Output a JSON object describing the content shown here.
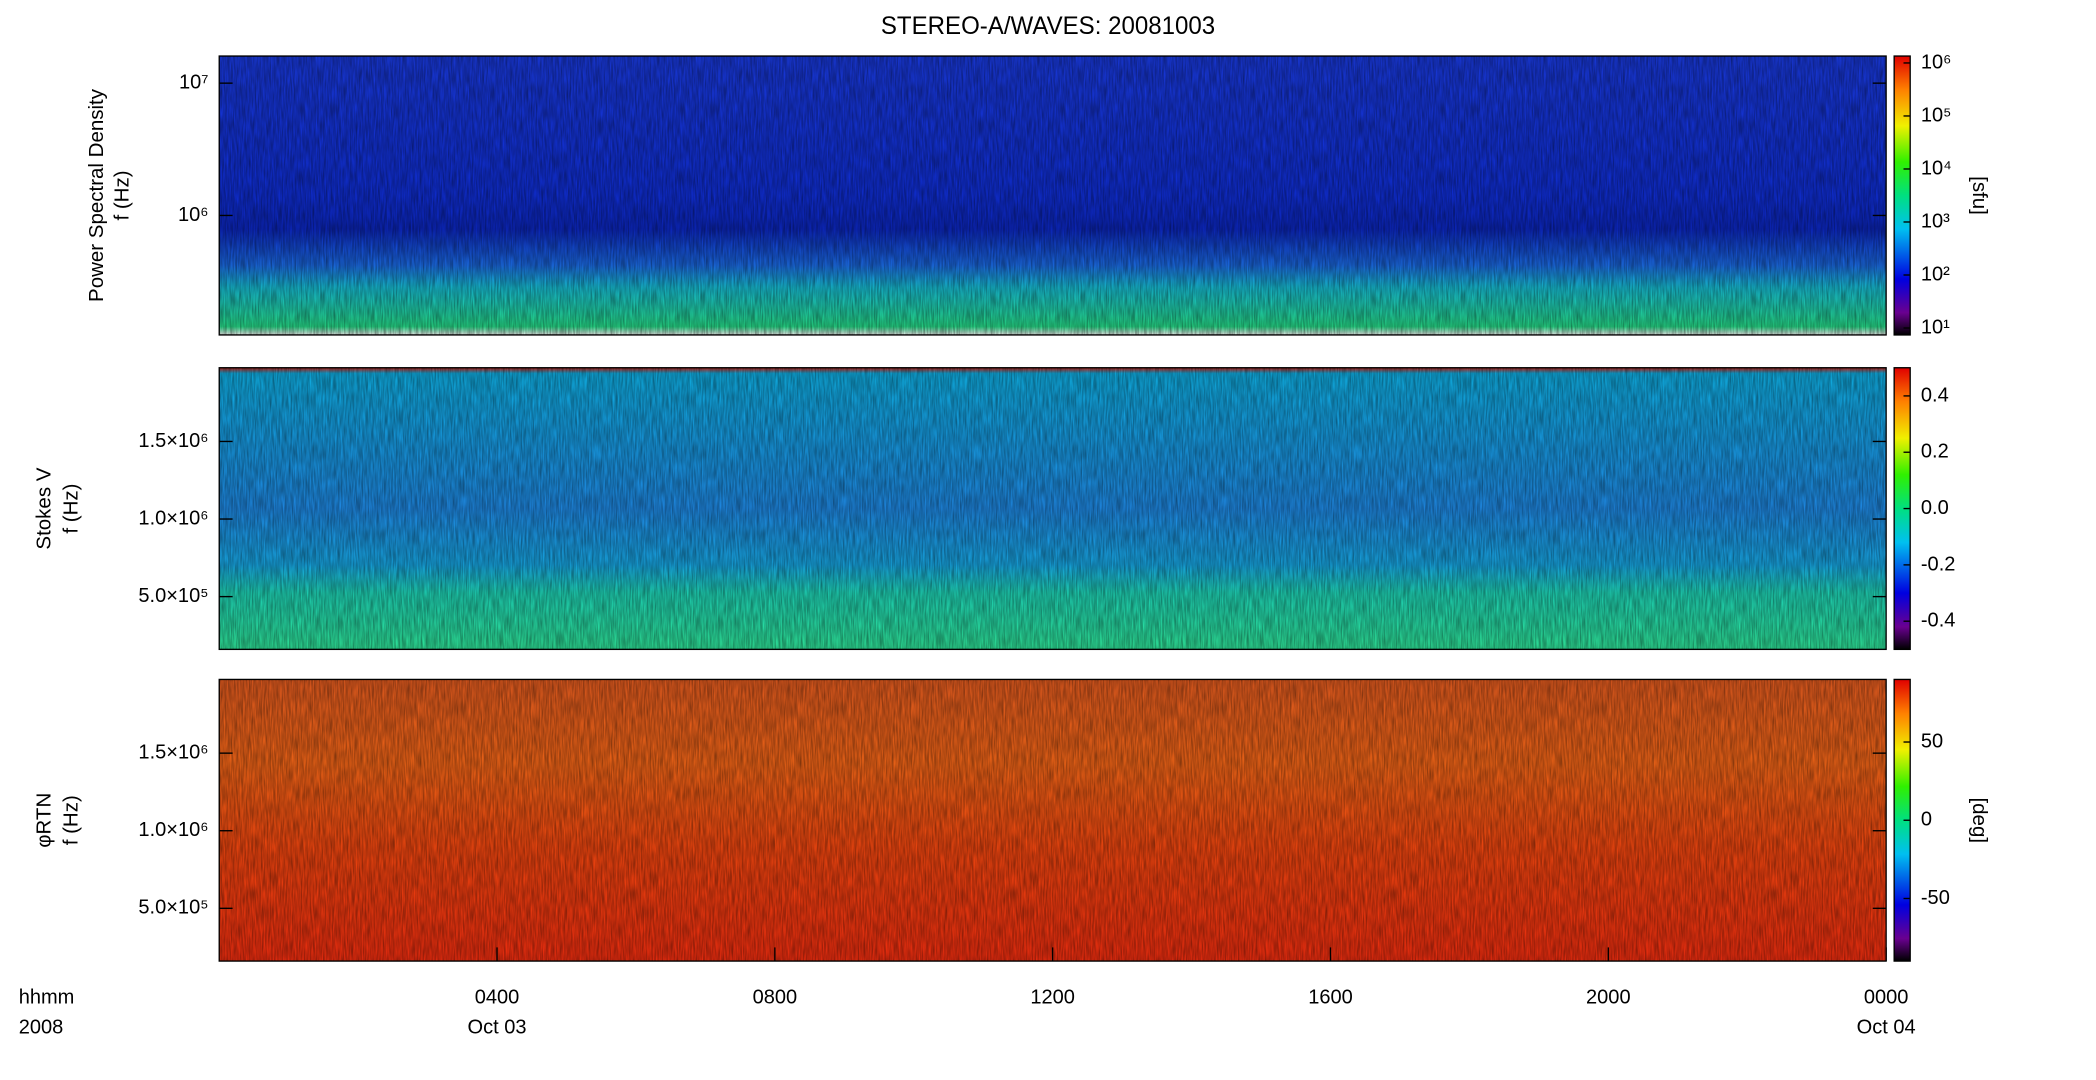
{
  "chart_data": [
    {
      "type": "spectrogram",
      "title": "STEREO-A/WAVES: 20081003",
      "ylabel": [
        "Power Spectral Density",
        "f (Hz)"
      ],
      "yscale": "log",
      "ylim": [
        125000,
        16025000
      ],
      "yticks": [
        {
          "value": 1000000,
          "label": "10⁶"
        },
        {
          "value": 10000000,
          "label": "10⁷"
        }
      ],
      "xlim": [
        0,
        24
      ],
      "colorbar": {
        "label": "[sfu]",
        "scale": "log",
        "lim": [
          7.4,
          1350000
        ],
        "ticks": [
          {
            "value": 10,
            "label": "10¹"
          },
          {
            "value": 100,
            "label": "10²"
          },
          {
            "value": 1000,
            "label": "10³"
          },
          {
            "value": 10000,
            "label": "10⁴"
          },
          {
            "value": 100000,
            "label": "10⁵"
          },
          {
            "value": 1000000,
            "label": "10⁶"
          }
        ]
      }
    },
    {
      "type": "spectrogram",
      "ylabel": [
        "Stokes V",
        "f (Hz)"
      ],
      "yscale": "linear",
      "ylim": [
        160000,
        1975000
      ],
      "yticks": [
        {
          "value": 500000,
          "label": "5.0×10⁵"
        },
        {
          "value": 1000000,
          "label": "1.0×10⁶"
        },
        {
          "value": 1500000,
          "label": "1.5×10⁶"
        }
      ],
      "xlim": [
        0,
        24
      ],
      "colorbar": {
        "scale": "linear",
        "lim": [
          -0.5,
          0.5
        ],
        "ticks": [
          -0.4,
          -0.2,
          {
            "value": 0,
            "label": "0.0"
          },
          0.2,
          0.4
        ]
      }
    },
    {
      "type": "spectrogram",
      "ylabel": [
        "φRTN",
        "f (Hz)"
      ],
      "yscale": "linear",
      "ylim": [
        160000,
        1975000
      ],
      "yticks": [
        {
          "value": 500000,
          "label": "5.0×10⁵"
        },
        {
          "value": 1000000,
          "label": "1.0×10⁶"
        },
        {
          "value": 1500000,
          "label": "1.5×10⁶"
        }
      ],
      "xlim": [
        0,
        24
      ],
      "xticks": [
        {
          "value": 4,
          "label": "0400"
        },
        {
          "value": 8,
          "label": "0800"
        },
        {
          "value": 12,
          "label": "1200"
        },
        {
          "value": 16,
          "label": "1600"
        },
        {
          "value": 20,
          "label": "2000"
        },
        {
          "value": 24,
          "label": "0000"
        }
      ],
      "xsublabels": [
        {
          "value": 4,
          "label": "Oct 03"
        },
        {
          "value": 24,
          "label": "Oct 04"
        }
      ],
      "xaxis_names": [
        "hhmm",
        "2008"
      ],
      "colorbar": {
        "label": "[deg]",
        "scale": "linear",
        "lim": [
          -90,
          90
        ],
        "ticks": [
          -50,
          0,
          50
        ]
      }
    }
  ]
}
